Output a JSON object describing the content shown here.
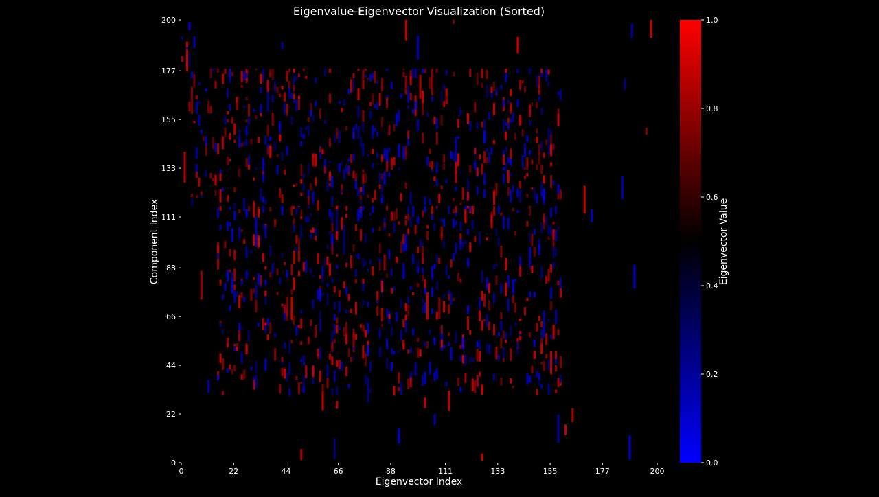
{
  "chart_data": {
    "type": "heatmap",
    "title": "Eigenvalue-Eigenvector Visualization (Sorted)",
    "xlabel": "Eigenvector Index",
    "ylabel": "Component Index",
    "xlim": [
      0,
      200
    ],
    "ylim": [
      0,
      200
    ],
    "xticks": [
      "0",
      "22",
      "44",
      "66",
      "88",
      "111",
      "133",
      "155",
      "177",
      "200"
    ],
    "xtick_values": [
      0,
      22,
      44,
      66,
      88,
      111,
      133,
      155,
      177,
      200
    ],
    "yticks": [
      "0",
      "22",
      "44",
      "66",
      "88",
      "111",
      "133",
      "155",
      "177",
      "200"
    ],
    "ytick_values": [
      0,
      22,
      44,
      66,
      88,
      111,
      133,
      155,
      177,
      200
    ],
    "colorbar": {
      "label": "Eigenvector Value",
      "min": 0.0,
      "max": 1.0,
      "ticks": [
        "0.0",
        "0.2",
        "0.4",
        "0.6",
        "0.8",
        "1.0"
      ],
      "tick_values": [
        0.0,
        0.2,
        0.4,
        0.6,
        0.8,
        1.0
      ],
      "colors": [
        "#0000ff",
        "#000000",
        "#ff0000"
      ]
    },
    "background_color": "#000000",
    "blocks": [
      {
        "x": [
          0,
          6
        ],
        "y": [
          178,
          200
        ]
      },
      {
        "x": [
          4,
          60
        ],
        "y": [
          116,
          178
        ]
      },
      {
        "x": [
          15,
          60
        ],
        "y": [
          30,
          116
        ]
      },
      {
        "x": [
          60,
          160
        ],
        "y": [
          30,
          116
        ]
      },
      {
        "x": [
          60,
          160
        ],
        "y": [
          116,
          178
        ]
      }
    ]
  }
}
